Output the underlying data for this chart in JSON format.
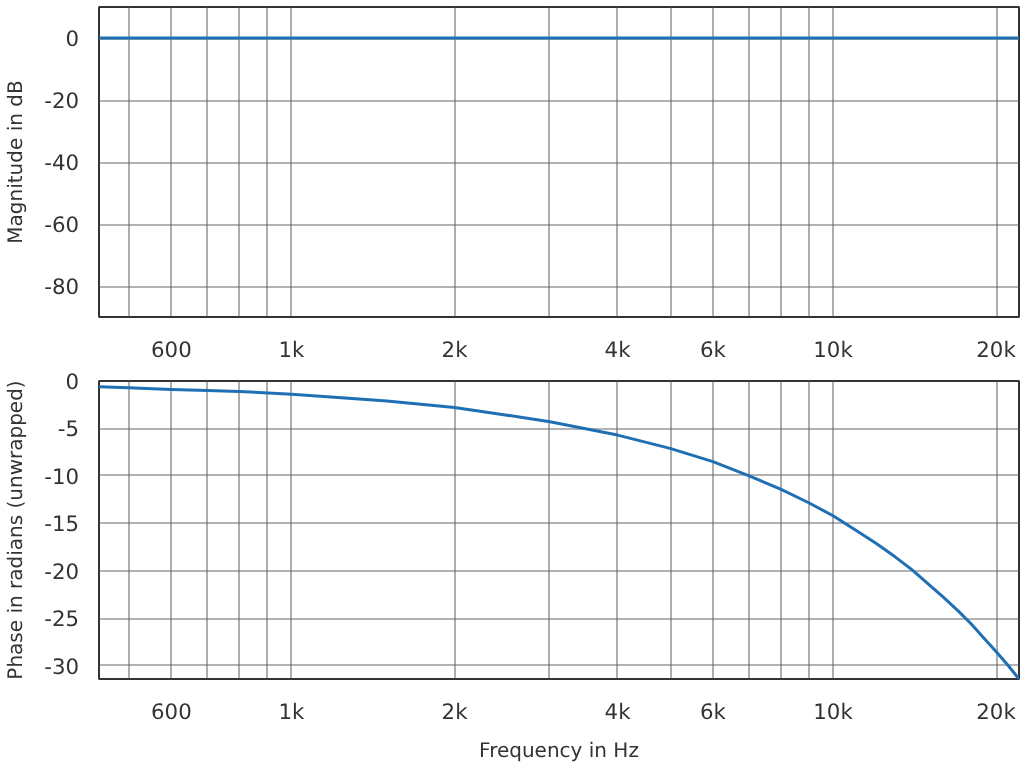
{
  "chart_data": [
    {
      "type": "line",
      "ylabel": "Magnitude in dB",
      "grid": true,
      "xlim": [
        441,
        22050
      ],
      "ylim": [
        -90,
        10
      ],
      "log": "x",
      "xticks": [
        {
          "value": 500,
          "label": null
        },
        600,
        {
          "value": 700,
          "label": null
        },
        {
          "value": 800,
          "label": null
        },
        {
          "value": 900,
          "label": null
        },
        {
          "value": 1000,
          "label": "1k"
        },
        {
          "value": 2000,
          "label": "2k"
        },
        {
          "value": 3000,
          "label": null
        },
        {
          "value": 4000,
          "label": "4k"
        },
        {
          "value": 5000,
          "label": null
        },
        {
          "value": 6000,
          "label": "6k"
        },
        {
          "value": 7000,
          "label": null
        },
        {
          "value": 8000,
          "label": null
        },
        {
          "value": 9000,
          "label": null
        },
        {
          "value": 10000,
          "label": "10k"
        },
        {
          "value": 20000,
          "label": "20k"
        }
      ],
      "yticks": [
        0,
        -20,
        -40,
        -60,
        -80
      ],
      "x": [
        441,
        500,
        600,
        700,
        800,
        1000,
        1200,
        1500,
        2000,
        2500,
        3000,
        4000,
        5000,
        6000,
        7000,
        8000,
        9000,
        10000,
        11000,
        12000,
        13000,
        14000,
        15000,
        16000,
        17000,
        18000,
        19000,
        20000,
        21000,
        22050
      ],
      "series": [
        {
          "color": "#1f6fb4",
          "values": [
            0,
            0,
            0,
            0,
            0,
            0,
            0,
            0,
            0,
            0,
            0,
            0,
            0,
            0,
            0,
            0,
            0,
            0,
            0,
            0,
            0,
            0,
            0,
            0,
            0,
            0,
            0,
            0,
            0,
            0
          ]
        }
      ]
    },
    {
      "type": "line",
      "xlabel": "Frequency in Hz",
      "ylabel": "Phase in radians (unwrapped)",
      "grid": true,
      "xlim": [
        441,
        22050
      ],
      "ylim": [
        -31.4,
        0
      ],
      "log": "x",
      "xticks": [
        {
          "value": 500,
          "label": null
        },
        600,
        {
          "value": 700,
          "label": null
        },
        {
          "value": 800,
          "label": null
        },
        {
          "value": 900,
          "label": null
        },
        {
          "value": 1000,
          "label": "1k"
        },
        {
          "value": 2000,
          "label": "2k"
        },
        {
          "value": 3000,
          "label": null
        },
        {
          "value": 4000,
          "label": "4k"
        },
        {
          "value": 5000,
          "label": null
        },
        {
          "value": 6000,
          "label": "6k"
        },
        {
          "value": 7000,
          "label": null
        },
        {
          "value": 8000,
          "label": null
        },
        {
          "value": 9000,
          "label": null
        },
        {
          "value": 10000,
          "label": "10k"
        },
        {
          "value": 20000,
          "label": "20k"
        }
      ],
      "yticks": [
        0,
        -5,
        -10,
        -15,
        -20,
        -25,
        -30
      ],
      "x": [
        441,
        500,
        600,
        700,
        800,
        1000,
        1200,
        1500,
        2000,
        2500,
        3000,
        4000,
        5000,
        6000,
        7000,
        8000,
        9000,
        10000,
        11000,
        12000,
        13000,
        14000,
        15000,
        16000,
        17000,
        18000,
        19000,
        20000,
        21000,
        22050
      ],
      "series": [
        {
          "color": "#1f6fb4",
          "values": [
            -0.6,
            -0.7,
            -0.9,
            -1.0,
            -1.1,
            -1.4,
            -1.7,
            -2.1,
            -2.8,
            -3.6,
            -4.3,
            -5.7,
            -7.1,
            -8.5,
            -10.0,
            -11.4,
            -12.8,
            -14.2,
            -15.7,
            -17.1,
            -18.5,
            -19.9,
            -21.4,
            -22.8,
            -24.2,
            -25.6,
            -27.1,
            -28.5,
            -29.9,
            -31.4
          ]
        }
      ]
    }
  ]
}
